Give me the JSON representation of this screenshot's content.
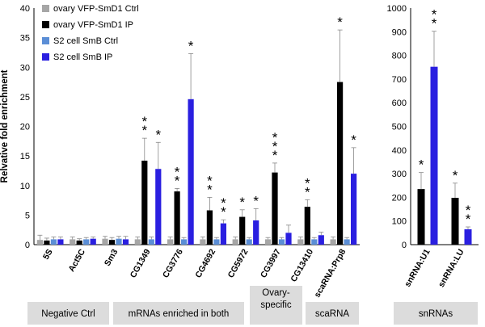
{
  "chart_data": [
    {
      "type": "bar",
      "ylabel": "Relvative fold enrichment",
      "ylim": [
        0,
        40
      ],
      "yticks": [
        0,
        5,
        10,
        15,
        20,
        25,
        30,
        35,
        40
      ],
      "categories": [
        "5S",
        "Act5C",
        "Sm3",
        "CG1349",
        "CG3776",
        "CG4692",
        "CG5972",
        "CG3997",
        "CG13410",
        "scaRNA:Prp8"
      ],
      "series": [
        {
          "name": "ovary VFP-SmD1 Ctrl",
          "color": "#a6a6a6",
          "values": [
            0.8,
            0.9,
            1.0,
            0.9,
            0.9,
            0.9,
            0.9,
            0.9,
            0.9,
            0.9
          ],
          "errors": [
            0.8,
            0.4,
            0.4,
            0.4,
            0.4,
            0.4,
            0.4,
            0.3,
            0.4,
            0.4
          ]
        },
        {
          "name": "ovary VFP-SmD1 IP",
          "color": "#000000",
          "values": [
            0.7,
            0.7,
            0.8,
            14.2,
            9.0,
            5.8,
            4.7,
            12.2,
            6.4,
            27.5
          ],
          "errors": [
            0.4,
            0.3,
            0.4,
            3.8,
            0.5,
            2.2,
            1.2,
            1.6,
            1.2,
            8.8
          ]
        },
        {
          "name": "S2 cell SmB Ctrl",
          "color": "#5b8ed6",
          "values": [
            0.9,
            0.9,
            1.0,
            0.9,
            0.9,
            0.9,
            0.9,
            0.9,
            0.9,
            0.9
          ],
          "errors": [
            0.4,
            0.3,
            0.4,
            0.4,
            0.3,
            0.3,
            0.3,
            0.3,
            0.3,
            0.3
          ]
        },
        {
          "name": "S2 cell SmB IP",
          "color": "#2a1fe0",
          "values": [
            0.9,
            1.0,
            0.9,
            12.8,
            24.6,
            3.6,
            4.1,
            2.0,
            1.6,
            12.0
          ],
          "errors": [
            0.4,
            0.3,
            0.5,
            4.5,
            7.7,
            0.6,
            2.0,
            1.3,
            0.5,
            4.4
          ]
        }
      ],
      "annotations": [
        {
          "category": "CG1349",
          "series": 1,
          "text": "**"
        },
        {
          "category": "CG1349",
          "series": 3,
          "text": "*"
        },
        {
          "category": "CG3776",
          "series": 1,
          "text": "**"
        },
        {
          "category": "CG3776",
          "series": 3,
          "text": "*"
        },
        {
          "category": "CG4692",
          "series": 1,
          "text": "**"
        },
        {
          "category": "CG4692",
          "series": 3,
          "text": "**"
        },
        {
          "category": "CG5972",
          "series": 1,
          "text": "*"
        },
        {
          "category": "CG5972",
          "series": 3,
          "text": "*"
        },
        {
          "category": "CG3997",
          "series": 1,
          "text": "***"
        },
        {
          "category": "CG13410",
          "series": 1,
          "text": "**"
        },
        {
          "category": "scaRNA:Prp8",
          "series": 1,
          "text": "*"
        },
        {
          "category": "scaRNA:Prp8",
          "series": 3,
          "text": "*"
        }
      ],
      "groups": [
        {
          "label": "Negative Ctrl",
          "categories": [
            "5S",
            "Act5C",
            "Sm3"
          ]
        },
        {
          "label": "mRNAs enriched in both",
          "categories": [
            "CG1349",
            "CG3776",
            "CG4692",
            "CG5972"
          ]
        },
        {
          "label": "Ovary-\nspecific",
          "categories": [
            "CG3997"
          ]
        },
        {
          "label": "scaRNA",
          "categories": [
            "CG13410",
            "scaRNA:Prp8"
          ]
        }
      ],
      "legend": "top-left"
    },
    {
      "type": "bar",
      "ylim": [
        0,
        1000
      ],
      "yticks": [
        0,
        100,
        200,
        300,
        400,
        500,
        600,
        700,
        800,
        900,
        1000
      ],
      "categories": [
        "snRNA:U1",
        "snRNA:LU"
      ],
      "series": [
        {
          "name": "ovary VFP-SmD1 IP",
          "color": "#000000",
          "values": [
            235,
            198
          ],
          "errors": [
            70,
            62
          ]
        },
        {
          "name": "S2 cell SmB IP",
          "color": "#2a1fe0",
          "values": [
            752,
            65
          ],
          "errors": [
            150,
            10
          ]
        }
      ],
      "annotations": [
        {
          "category": "snRNA:U1",
          "series": 0,
          "text": "*"
        },
        {
          "category": "snRNA:U1",
          "series": 1,
          "text": "**"
        },
        {
          "category": "snRNA:LU",
          "series": 0,
          "text": "*"
        },
        {
          "category": "snRNA:LU",
          "series": 1,
          "text": "**"
        }
      ],
      "groups": [
        {
          "label": "snRNAs",
          "categories": [
            "snRNA:U1",
            "snRNA:LU"
          ]
        }
      ]
    }
  ]
}
